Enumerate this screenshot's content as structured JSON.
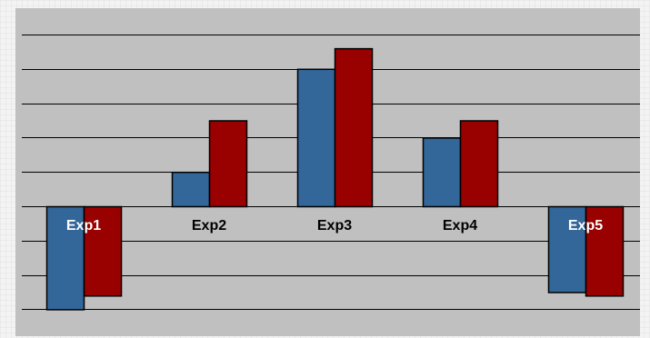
{
  "chart_data": {
    "type": "bar",
    "categories": [
      "Exp1",
      "Exp2",
      "Exp3",
      "Exp4",
      "Exp5"
    ],
    "series": [
      {
        "values": [
          -3.0,
          1.0,
          4.0,
          2.0,
          -2.5
        ]
      },
      {
        "values": [
          -2.6,
          2.5,
          4.6,
          2.5,
          -2.6
        ]
      }
    ],
    "ylim": [
      -3.0,
      5.0
    ],
    "grid": true,
    "legend": "none",
    "title": "",
    "xlabel": "",
    "ylabel": "",
    "colors": {
      "series": [
        "#336699",
        "#990000"
      ],
      "plot_background": "#c0c0c0",
      "gridline": "#000000",
      "label_dark": "#000000",
      "label_light": "#ffffff"
    }
  }
}
